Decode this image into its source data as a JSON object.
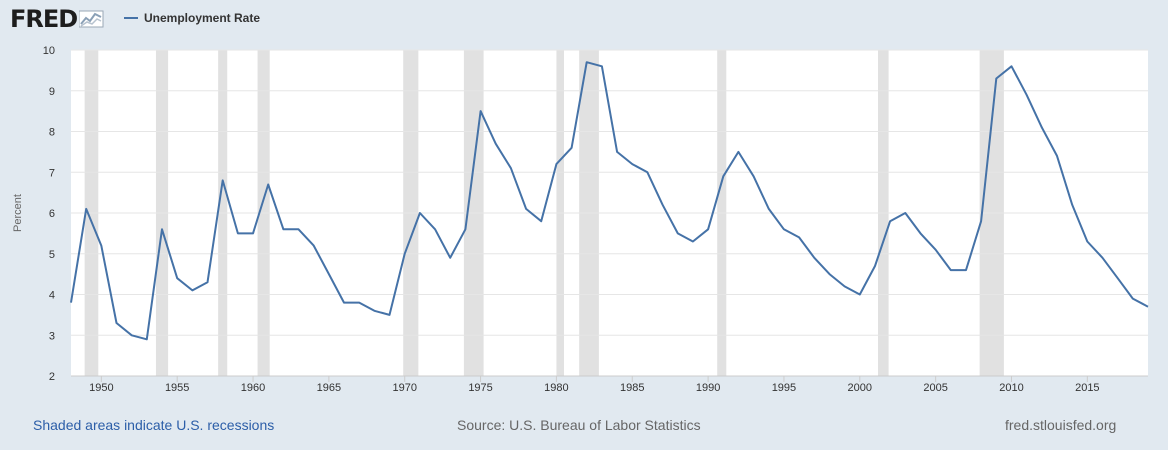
{
  "header": {
    "logo_text": "FRED",
    "legend_label": "Unemployment Rate"
  },
  "colors": {
    "background": "#e1e9f0",
    "plot_background": "#ffffff",
    "line": "#4572a7",
    "recession": "#e1e1e1",
    "grid": "#e6e6e6",
    "link": "#2c5ea8"
  },
  "footer": {
    "recessions_note": "Shaded areas indicate U.S. recessions",
    "source": "Source: U.S. Bureau of Labor Statistics",
    "site": "fred.stlouisfed.org"
  },
  "chart_data": {
    "type": "line",
    "title": "",
    "ylabel": "Percent",
    "xlabel": "",
    "ylim": [
      2,
      10
    ],
    "xlim": [
      1948,
      2019
    ],
    "yticks": [
      2,
      3,
      4,
      5,
      6,
      7,
      8,
      9,
      10
    ],
    "xticks": [
      1950,
      1955,
      1960,
      1965,
      1970,
      1975,
      1980,
      1985,
      1990,
      1995,
      2000,
      2005,
      2010,
      2015
    ],
    "grid": true,
    "legend": "top-left",
    "series": [
      {
        "name": "Unemployment Rate",
        "x": [
          1948,
          1949,
          1950,
          1951,
          1952,
          1953,
          1954,
          1955,
          1956,
          1957,
          1958,
          1959,
          1960,
          1961,
          1962,
          1963,
          1964,
          1965,
          1966,
          1967,
          1968,
          1969,
          1970,
          1971,
          1972,
          1973,
          1974,
          1975,
          1976,
          1977,
          1978,
          1979,
          1980,
          1981,
          1982,
          1983,
          1984,
          1985,
          1986,
          1987,
          1988,
          1989,
          1990,
          1991,
          1992,
          1993,
          1994,
          1995,
          1996,
          1997,
          1998,
          1999,
          2000,
          2001,
          2002,
          2003,
          2004,
          2005,
          2006,
          2007,
          2008,
          2009,
          2010,
          2011,
          2012,
          2013,
          2014,
          2015,
          2016,
          2017,
          2018,
          2019
        ],
        "values": [
          3.8,
          6.1,
          5.2,
          3.3,
          3.0,
          2.9,
          5.6,
          4.4,
          4.1,
          4.3,
          6.8,
          5.5,
          5.5,
          6.7,
          5.6,
          5.6,
          5.2,
          4.5,
          3.8,
          3.8,
          3.6,
          3.5,
          5.0,
          6.0,
          5.6,
          4.9,
          5.6,
          8.5,
          7.7,
          7.1,
          6.1,
          5.8,
          7.2,
          7.6,
          9.7,
          9.6,
          7.5,
          7.2,
          7.0,
          6.2,
          5.5,
          5.3,
          5.6,
          6.9,
          7.5,
          6.9,
          6.1,
          5.6,
          5.4,
          4.9,
          4.5,
          4.2,
          4.0,
          4.7,
          5.8,
          6.0,
          5.5,
          5.1,
          4.6,
          4.6,
          5.8,
          9.3,
          9.6,
          8.9,
          8.1,
          7.4,
          6.2,
          5.3,
          4.9,
          4.4,
          3.9,
          3.7
        ]
      }
    ],
    "recessions": [
      [
        1948.9,
        1949.8
      ],
      [
        1953.6,
        1954.4
      ],
      [
        1957.7,
        1958.3
      ],
      [
        1960.3,
        1961.1
      ],
      [
        1969.9,
        1970.9
      ],
      [
        1973.9,
        1975.2
      ],
      [
        1980.0,
        1980.5
      ],
      [
        1981.5,
        1982.8
      ],
      [
        1990.6,
        1991.2
      ],
      [
        2001.2,
        2001.9
      ],
      [
        2007.9,
        2009.5
      ]
    ]
  }
}
